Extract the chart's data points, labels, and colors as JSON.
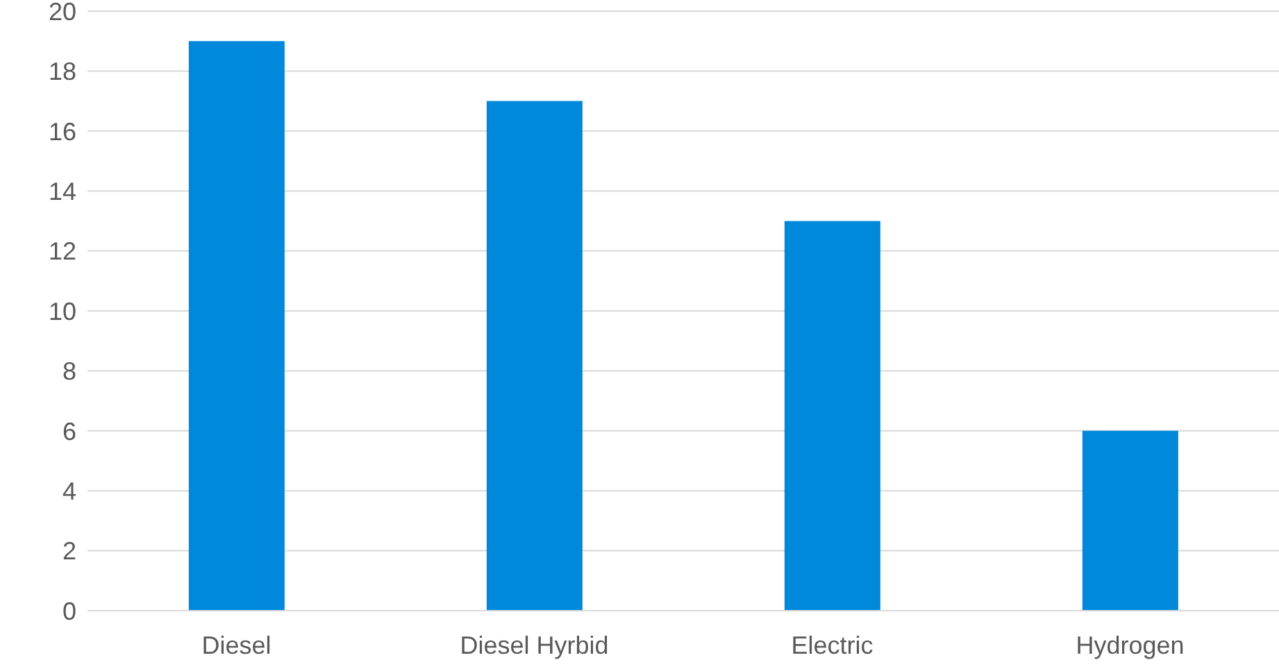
{
  "chart_data": {
    "type": "bar",
    "categories": [
      "Diesel",
      "Diesel Hyrbid",
      "Electric",
      "Hydrogen"
    ],
    "values": [
      19,
      17,
      13,
      6
    ],
    "color": "#0089db",
    "ylim": [
      0,
      20
    ],
    "yticks": [
      0,
      2,
      4,
      6,
      8,
      10,
      12,
      14,
      16,
      18,
      20
    ],
    "grid": "y",
    "legend": false
  }
}
